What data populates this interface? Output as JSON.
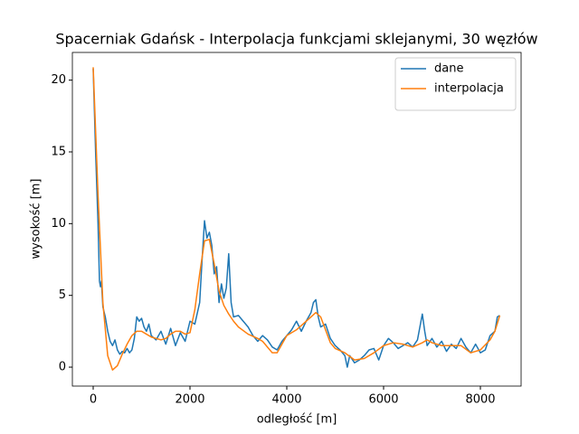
{
  "chart_data": {
    "type": "line",
    "title": "Spacerniak Gdańsk - Interpolacja funkcjami sklejanymi, 30 węzłów",
    "x_label": "odległość [m]",
    "y_label": "wysokość [m]",
    "xlim": [
      -430,
      8841
    ],
    "ylim": [
      -1.32,
      21.93
    ],
    "xticks": [
      0,
      2000,
      4000,
      6000,
      8000
    ],
    "yticks": [
      0,
      5,
      10,
      15,
      20
    ],
    "grid": false,
    "legend": "upper right",
    "series": [
      {
        "name": "dane",
        "color": "#1f77b4",
        "x": [
          0,
          50,
          100,
          130,
          150,
          170,
          200,
          250,
          300,
          350,
          400,
          450,
          500,
          550,
          600,
          650,
          700,
          750,
          800,
          850,
          900,
          950,
          1000,
          1050,
          1100,
          1150,
          1200,
          1300,
          1400,
          1500,
          1600,
          1700,
          1800,
          1900,
          2000,
          2100,
          2200,
          2250,
          2300,
          2350,
          2400,
          2450,
          2500,
          2550,
          2600,
          2650,
          2700,
          2750,
          2800,
          2850,
          2900,
          3000,
          3100,
          3200,
          3300,
          3400,
          3500,
          3600,
          3700,
          3800,
          3900,
          4000,
          4100,
          4200,
          4300,
          4400,
          4500,
          4550,
          4600,
          4650,
          4700,
          4800,
          4900,
          5000,
          5100,
          5200,
          5250,
          5300,
          5400,
          5500,
          5600,
          5700,
          5800,
          5900,
          6000,
          6100,
          6200,
          6300,
          6400,
          6500,
          6600,
          6700,
          6800,
          6850,
          6900,
          7000,
          7100,
          7200,
          7300,
          7400,
          7500,
          7600,
          7700,
          7800,
          7900,
          8000,
          8100,
          8200,
          8300,
          8350,
          8400
        ],
        "values": [
          20.8,
          15,
          10,
          6,
          5.6,
          6,
          4.2,
          3.5,
          2.5,
          1.8,
          1.5,
          1.9,
          1.2,
          0.9,
          1.1,
          1.0,
          1.3,
          1.0,
          1.2,
          2.0,
          3.5,
          3.2,
          3.4,
          2.8,
          2.5,
          3.0,
          2.2,
          1.9,
          2.5,
          1.6,
          2.7,
          1.5,
          2.4,
          1.8,
          3.2,
          3.0,
          4.5,
          7.5,
          10.2,
          9.0,
          9.4,
          8.5,
          6.5,
          7.0,
          4.5,
          5.8,
          4.8,
          5.5,
          7.9,
          4.5,
          3.5,
          3.6,
          3.2,
          2.8,
          2.2,
          1.8,
          2.2,
          1.9,
          1.4,
          1.2,
          1.8,
          2.2,
          2.6,
          3.2,
          2.5,
          3.2,
          3.8,
          4.5,
          4.7,
          3.5,
          2.8,
          3.0,
          2.0,
          1.5,
          1.2,
          0.8,
          0.0,
          0.8,
          0.3,
          0.5,
          0.8,
          1.2,
          1.3,
          0.5,
          1.5,
          2.0,
          1.7,
          1.3,
          1.5,
          1.7,
          1.4,
          1.9,
          3.7,
          2.5,
          1.5,
          2.0,
          1.4,
          1.8,
          1.1,
          1.6,
          1.3,
          2.0,
          1.4,
          1.0,
          1.6,
          1.0,
          1.2,
          2.2,
          2.5,
          3.5,
          3.6
        ]
      },
      {
        "name": "interpolacja",
        "color": "#ff7f0e",
        "x": [
          0,
          100,
          200,
          300,
          400,
          500,
          600,
          700,
          800,
          900,
          1000,
          1100,
          1200,
          1300,
          1400,
          1500,
          1600,
          1700,
          1800,
          1900,
          2000,
          2100,
          2200,
          2300,
          2400,
          2500,
          2600,
          2700,
          2800,
          2900,
          3000,
          3200,
          3400,
          3500,
          3600,
          3700,
          3800,
          3900,
          4000,
          4200,
          4400,
          4600,
          4700,
          4800,
          4900,
          5000,
          5200,
          5400,
          5600,
          5800,
          6000,
          6200,
          6400,
          6600,
          6800,
          6900,
          7000,
          7200,
          7400,
          7600,
          7800,
          8000,
          8200,
          8300,
          8400
        ],
        "values": [
          20.9,
          12,
          4.5,
          0.8,
          -0.2,
          0.1,
          0.9,
          1.6,
          2.2,
          2.5,
          2.5,
          2.3,
          2.1,
          2.0,
          1.9,
          2.0,
          2.3,
          2.5,
          2.5,
          2.3,
          2.4,
          4.0,
          6.5,
          8.8,
          8.9,
          7.2,
          5.3,
          4.3,
          3.7,
          3.2,
          2.8,
          2.3,
          2.0,
          1.8,
          1.4,
          1.0,
          1.0,
          1.6,
          2.2,
          2.6,
          3.2,
          3.8,
          3.5,
          2.6,
          1.7,
          1.3,
          1.0,
          0.5,
          0.6,
          1.0,
          1.5,
          1.7,
          1.6,
          1.4,
          1.7,
          1.9,
          1.7,
          1.5,
          1.5,
          1.5,
          1.0,
          1.2,
          1.9,
          2.5,
          3.6
        ]
      }
    ]
  }
}
